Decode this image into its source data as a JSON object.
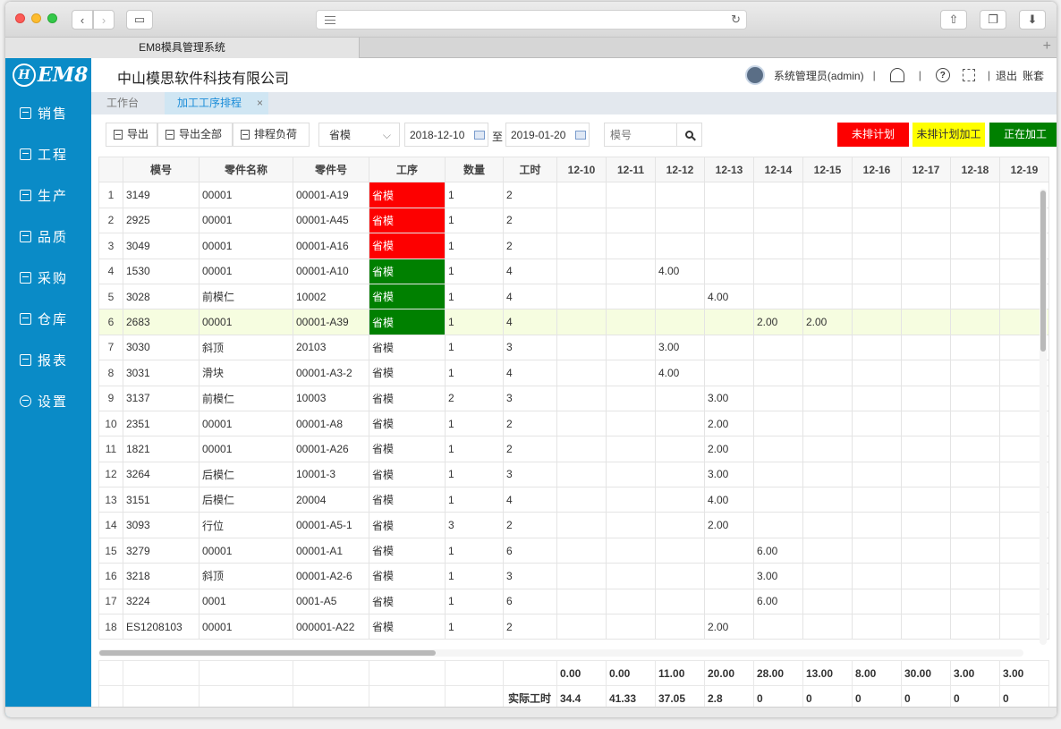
{
  "browser": {
    "tab_title": "EM8模具管理系统"
  },
  "app": {
    "logo_text": "EM8",
    "company": "中山模思软件科技有限公司",
    "user": "系统管理员(admin)",
    "logout": "退出",
    "account": "账套"
  },
  "sidebar": {
    "items": [
      {
        "label": "销售"
      },
      {
        "label": "工程"
      },
      {
        "label": "生产"
      },
      {
        "label": "品质"
      },
      {
        "label": "采购"
      },
      {
        "label": "仓库"
      },
      {
        "label": "报表"
      },
      {
        "label": "设置"
      }
    ]
  },
  "pagetabs": {
    "workbench": "工作台",
    "active": "加工工序排程",
    "close": "×"
  },
  "toolbar": {
    "export": "导出",
    "export_all": "导出全部",
    "schedule_load": "排程负荷",
    "process_select": "省模",
    "date_from": "2018-12-10",
    "date_sep": "至",
    "date_to": "2019-01-20",
    "mold_placeholder": "模号",
    "legend_unscheduled": "未排计划",
    "legend_unscheduled_processing": "未排计划加工",
    "legend_processing": "正在加工"
  },
  "colors": {
    "sidebar": "#0a8bc7",
    "red": "#fd0000",
    "yellow": "#ffff00",
    "green": "#008000",
    "highlight_row": "#f6fde0"
  },
  "grid": {
    "headers": [
      "模号",
      "零件名称",
      "零件号",
      "工序",
      "数量",
      "工时",
      "12-10",
      "12-11",
      "12-12",
      "12-13",
      "12-14",
      "12-15",
      "12-16",
      "12-17",
      "12-18",
      "12-19"
    ],
    "rows": [
      {
        "no": "1",
        "mold": "3149",
        "part_name": "00001",
        "part_no": "00001-A19",
        "process": "省模",
        "status": "red",
        "qty": "1",
        "hours": "2",
        "days": [
          "",
          "",
          "",
          "",
          "",
          "",
          "",
          "",
          "",
          ""
        ]
      },
      {
        "no": "2",
        "mold": "2925",
        "part_name": "00001",
        "part_no": "00001-A45",
        "process": "省模",
        "status": "red",
        "qty": "1",
        "hours": "2",
        "days": [
          "",
          "",
          "",
          "",
          "",
          "",
          "",
          "",
          "",
          ""
        ]
      },
      {
        "no": "3",
        "mold": "3049",
        "part_name": "00001",
        "part_no": "00001-A16",
        "process": "省模",
        "status": "red",
        "qty": "1",
        "hours": "2",
        "days": [
          "",
          "",
          "",
          "",
          "",
          "",
          "",
          "",
          "",
          ""
        ]
      },
      {
        "no": "4",
        "mold": "1530",
        "part_name": "00001",
        "part_no": "00001-A10",
        "process": "省模",
        "status": "green",
        "qty": "1",
        "hours": "4",
        "days": [
          "",
          "",
          "4.00",
          "",
          "",
          "",
          "",
          "",
          "",
          ""
        ]
      },
      {
        "no": "5",
        "mold": "3028",
        "part_name": "前模仁",
        "part_no": "10002",
        "process": "省模",
        "status": "green",
        "qty": "1",
        "hours": "4",
        "days": [
          "",
          "",
          "",
          "4.00",
          "",
          "",
          "",
          "",
          "",
          ""
        ]
      },
      {
        "no": "6",
        "mold": "2683",
        "part_name": "00001",
        "part_no": "00001-A39",
        "process": "省模",
        "status": "green",
        "qty": "1",
        "hours": "4",
        "days": [
          "",
          "",
          "",
          "",
          "2.00",
          "2.00",
          "",
          "",
          "",
          ""
        ],
        "highlight": true
      },
      {
        "no": "7",
        "mold": "3030",
        "part_name": "斜顶",
        "part_no": "20103",
        "process": "省模",
        "status": "",
        "qty": "1",
        "hours": "3",
        "days": [
          "",
          "",
          "3.00",
          "",
          "",
          "",
          "",
          "",
          "",
          ""
        ]
      },
      {
        "no": "8",
        "mold": "3031",
        "part_name": "滑块",
        "part_no": "00001-A3-2",
        "process": "省模",
        "status": "",
        "qty": "1",
        "hours": "4",
        "days": [
          "",
          "",
          "4.00",
          "",
          "",
          "",
          "",
          "",
          "",
          ""
        ]
      },
      {
        "no": "9",
        "mold": "3137",
        "part_name": "前模仁",
        "part_no": "10003",
        "process": "省模",
        "status": "",
        "qty": "2",
        "hours": "3",
        "days": [
          "",
          "",
          "",
          "3.00",
          "",
          "",
          "",
          "",
          "",
          ""
        ]
      },
      {
        "no": "10",
        "mold": "2351",
        "part_name": "00001",
        "part_no": "00001-A8",
        "process": "省模",
        "status": "",
        "qty": "1",
        "hours": "2",
        "days": [
          "",
          "",
          "",
          "2.00",
          "",
          "",
          "",
          "",
          "",
          ""
        ]
      },
      {
        "no": "11",
        "mold": "1821",
        "part_name": "00001",
        "part_no": "00001-A26",
        "process": "省模",
        "status": "",
        "qty": "1",
        "hours": "2",
        "days": [
          "",
          "",
          "",
          "2.00",
          "",
          "",
          "",
          "",
          "",
          ""
        ]
      },
      {
        "no": "12",
        "mold": "3264",
        "part_name": "后模仁",
        "part_no": "10001-3",
        "process": "省模",
        "status": "",
        "qty": "1",
        "hours": "3",
        "days": [
          "",
          "",
          "",
          "3.00",
          "",
          "",
          "",
          "",
          "",
          ""
        ]
      },
      {
        "no": "13",
        "mold": "3151",
        "part_name": "后模仁",
        "part_no": "20004",
        "process": "省模",
        "status": "",
        "qty": "1",
        "hours": "4",
        "days": [
          "",
          "",
          "",
          "4.00",
          "",
          "",
          "",
          "",
          "",
          ""
        ]
      },
      {
        "no": "14",
        "mold": "3093",
        "part_name": "行位",
        "part_no": "00001-A5-1",
        "process": "省模",
        "status": "",
        "qty": "3",
        "hours": "2",
        "days": [
          "",
          "",
          "",
          "2.00",
          "",
          "",
          "",
          "",
          "",
          ""
        ]
      },
      {
        "no": "15",
        "mold": "3279",
        "part_name": "00001",
        "part_no": "00001-A1",
        "process": "省模",
        "status": "",
        "qty": "1",
        "hours": "6",
        "days": [
          "",
          "",
          "",
          "",
          "6.00",
          "",
          "",
          "",
          "",
          ""
        ]
      },
      {
        "no": "16",
        "mold": "3218",
        "part_name": "斜顶",
        "part_no": "00001-A2-6",
        "process": "省模",
        "status": "",
        "qty": "1",
        "hours": "3",
        "days": [
          "",
          "",
          "",
          "",
          "3.00",
          "",
          "",
          "",
          "",
          ""
        ]
      },
      {
        "no": "17",
        "mold": "3224",
        "part_name": "0001",
        "part_no": "0001-A5",
        "process": "省模",
        "status": "",
        "qty": "1",
        "hours": "6",
        "days": [
          "",
          "",
          "",
          "",
          "6.00",
          "",
          "",
          "",
          "",
          ""
        ]
      },
      {
        "no": "18",
        "mold": "ES1208103",
        "part_name": "00001",
        "part_no": "000001-A22",
        "process": "省模",
        "status": "",
        "qty": "1",
        "hours": "2",
        "days": [
          "",
          "",
          "",
          "2.00",
          "",
          "",
          "",
          "",
          "",
          ""
        ]
      }
    ]
  },
  "footer": {
    "planned": [
      "0.00",
      "0.00",
      "11.00",
      "20.00",
      "28.00",
      "13.00",
      "8.00",
      "30.00",
      "3.00",
      "3.00"
    ],
    "actual_label": "实际工时",
    "actual": [
      "34.4",
      "41.33",
      "37.05",
      "2.8",
      "0",
      "0",
      "0",
      "0",
      "0",
      "0"
    ]
  }
}
